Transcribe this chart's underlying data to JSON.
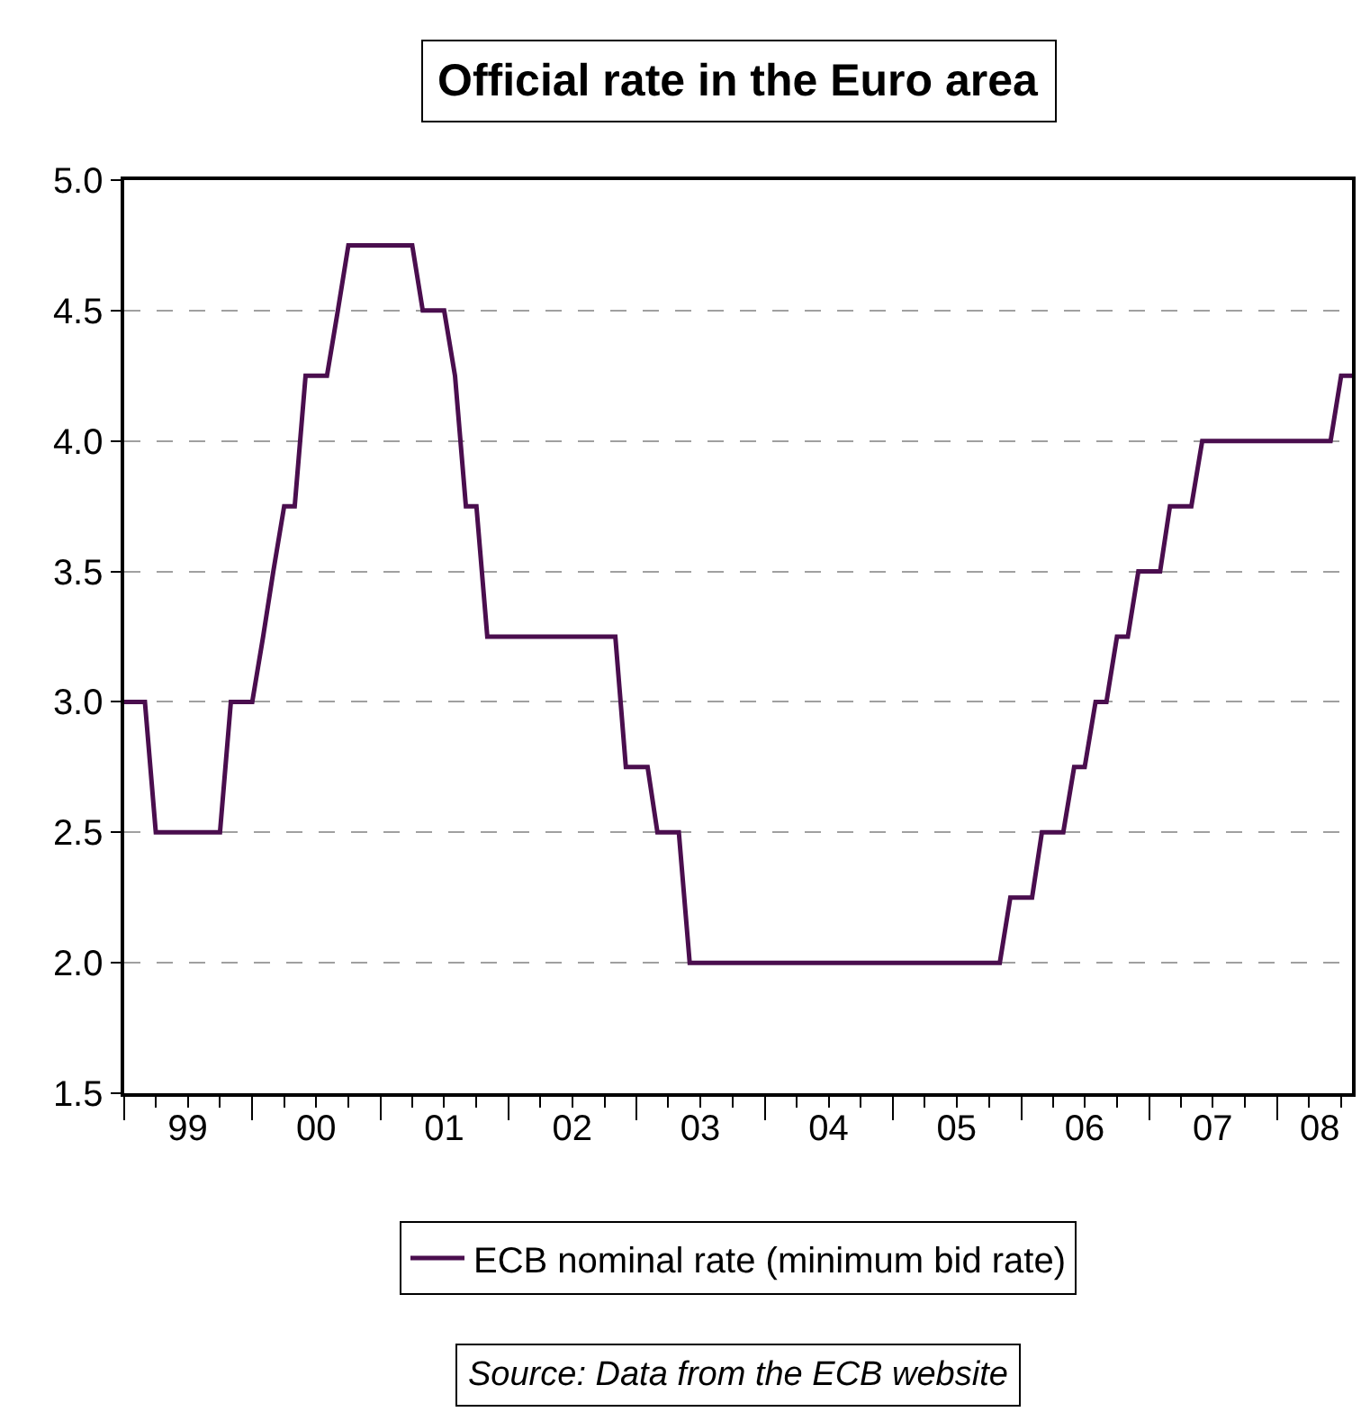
{
  "chart_data": {
    "type": "line",
    "title": "Official rate in the Euro area",
    "x": [
      "1999-01",
      "1999-02",
      "1999-03",
      "1999-04",
      "1999-05",
      "1999-06",
      "1999-07",
      "1999-08",
      "1999-09",
      "1999-10",
      "1999-11",
      "1999-12",
      "2000-01",
      "2000-02",
      "2000-03",
      "2000-04",
      "2000-05",
      "2000-06",
      "2000-07",
      "2000-08",
      "2000-09",
      "2000-10",
      "2000-11",
      "2000-12",
      "2001-01",
      "2001-02",
      "2001-03",
      "2001-04",
      "2001-05",
      "2001-06",
      "2001-07",
      "2001-08",
      "2001-09",
      "2001-10",
      "2001-11",
      "2001-12",
      "2002-01",
      "2002-02",
      "2002-03",
      "2002-04",
      "2002-05",
      "2002-06",
      "2002-07",
      "2002-08",
      "2002-09",
      "2002-10",
      "2002-11",
      "2002-12",
      "2003-01",
      "2003-02",
      "2003-03",
      "2003-04",
      "2003-05",
      "2003-06",
      "2003-07",
      "2003-08",
      "2003-09",
      "2003-10",
      "2003-11",
      "2003-12",
      "2004-01",
      "2004-02",
      "2004-03",
      "2004-04",
      "2004-05",
      "2004-06",
      "2004-07",
      "2004-08",
      "2004-09",
      "2004-10",
      "2004-11",
      "2004-12",
      "2005-01",
      "2005-02",
      "2005-03",
      "2005-04",
      "2005-05",
      "2005-06",
      "2005-07",
      "2005-08",
      "2005-09",
      "2005-10",
      "2005-11",
      "2005-12",
      "2006-01",
      "2006-02",
      "2006-03",
      "2006-04",
      "2006-05",
      "2006-06",
      "2006-07",
      "2006-08",
      "2006-09",
      "2006-10",
      "2006-11",
      "2006-12",
      "2007-01",
      "2007-02",
      "2007-03",
      "2007-04",
      "2007-05",
      "2007-06",
      "2007-07",
      "2007-08",
      "2007-09",
      "2007-10",
      "2007-11",
      "2007-12",
      "2008-01",
      "2008-02",
      "2008-03",
      "2008-04",
      "2008-05",
      "2008-06",
      "2008-07",
      "2008-08"
    ],
    "series": [
      {
        "name": "ECB nominal rate (minimum bid rate)",
        "color": "#4a0e4e",
        "values": [
          3.0,
          3.0,
          3.0,
          2.5,
          2.5,
          2.5,
          2.5,
          2.5,
          2.5,
          2.5,
          3.0,
          3.0,
          3.0,
          3.25,
          3.5,
          3.75,
          3.75,
          4.25,
          4.25,
          4.25,
          4.5,
          4.75,
          4.75,
          4.75,
          4.75,
          4.75,
          4.75,
          4.75,
          4.5,
          4.5,
          4.5,
          4.25,
          3.75,
          3.75,
          3.25,
          3.25,
          3.25,
          3.25,
          3.25,
          3.25,
          3.25,
          3.25,
          3.25,
          3.25,
          3.25,
          3.25,
          3.25,
          2.75,
          2.75,
          2.75,
          2.5,
          2.5,
          2.5,
          2.0,
          2.0,
          2.0,
          2.0,
          2.0,
          2.0,
          2.0,
          2.0,
          2.0,
          2.0,
          2.0,
          2.0,
          2.0,
          2.0,
          2.0,
          2.0,
          2.0,
          2.0,
          2.0,
          2.0,
          2.0,
          2.0,
          2.0,
          2.0,
          2.0,
          2.0,
          2.0,
          2.0,
          2.0,
          2.0,
          2.25,
          2.25,
          2.25,
          2.5,
          2.5,
          2.5,
          2.75,
          2.75,
          3.0,
          3.0,
          3.25,
          3.25,
          3.5,
          3.5,
          3.5,
          3.75,
          3.75,
          3.75,
          4.0,
          4.0,
          4.0,
          4.0,
          4.0,
          4.0,
          4.0,
          4.0,
          4.0,
          4.0,
          4.0,
          4.0,
          4.0,
          4.25,
          4.25
        ]
      }
    ],
    "xlim": [
      "1999-01",
      "2008-08"
    ],
    "xticks": [
      {
        "value": "1999-07",
        "label": "99"
      },
      {
        "value": "2000-07",
        "label": "00"
      },
      {
        "value": "2001-07",
        "label": "01"
      },
      {
        "value": "2002-07",
        "label": "02"
      },
      {
        "value": "2003-07",
        "label": "03"
      },
      {
        "value": "2004-07",
        "label": "04"
      },
      {
        "value": "2005-07",
        "label": "05"
      },
      {
        "value": "2006-07",
        "label": "06"
      },
      {
        "value": "2007-07",
        "label": "07"
      },
      {
        "value": "2008-05",
        "label": "08"
      }
    ],
    "ylim": [
      1.5,
      5.0
    ],
    "yticks": [
      {
        "value": 1.5,
        "label": "1.5"
      },
      {
        "value": 2.0,
        "label": "2.0"
      },
      {
        "value": 2.5,
        "label": "2.5"
      },
      {
        "value": 3.0,
        "label": "3.0"
      },
      {
        "value": 3.5,
        "label": "3.5"
      },
      {
        "value": 4.0,
        "label": "4.0"
      },
      {
        "value": 4.5,
        "label": "4.5"
      },
      {
        "value": 5.0,
        "label": "5.0"
      }
    ],
    "grid": "y",
    "line_style": "solid",
    "legend": "bottom",
    "annotations": [
      "Source: Data from the ECB website"
    ]
  }
}
